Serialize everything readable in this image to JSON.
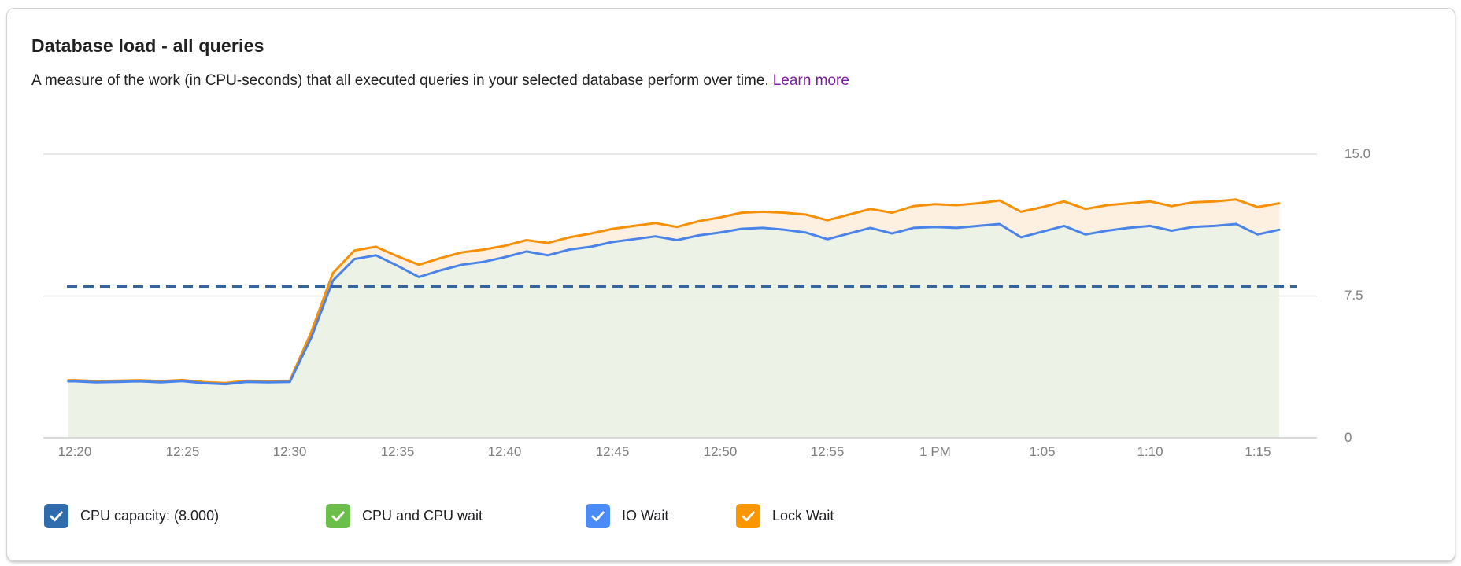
{
  "header": {
    "title": "Database load - all queries",
    "description": "A measure of the work (in CPU-seconds) that all executed queries in your selected database perform over time.",
    "learn_more_label": "Learn more",
    "link_color": "#7b1fa2"
  },
  "legend": {
    "items": [
      {
        "label": "CPU capacity: (8.000)",
        "color": "#2e6cad",
        "checked": true
      },
      {
        "label": "CPU and CPU wait",
        "color": "#6cbe4b",
        "checked": true
      },
      {
        "label": "IO Wait",
        "color": "#4b8bf7",
        "checked": true
      },
      {
        "label": "Lock Wait",
        "color": "#fb9600",
        "checked": true
      }
    ]
  },
  "colors": {
    "gridline": "#e0e0e0",
    "axis_line": "#d9d9d9",
    "axis_label": "#7f7f7f",
    "card_border": "#d2d2d2"
  },
  "chart_data": {
    "type": "area",
    "title": "Database load - all queries",
    "ylabel": "",
    "xlabel": "",
    "ylim": [
      0,
      15
    ],
    "grid": true,
    "legend_position": "bottom",
    "y_ticks": [
      {
        "value": 0,
        "label": "0"
      },
      {
        "value": 7.5,
        "label": "7.5"
      },
      {
        "value": 15,
        "label": "15.0"
      }
    ],
    "x_tick_labels": [
      "12:20",
      "12:25",
      "12:30",
      "12:35",
      "12:40",
      "12:45",
      "12:50",
      "12:55",
      "1 PM",
      "1:05",
      "1:10",
      "1:15"
    ],
    "x_tick_minutes": [
      0,
      5,
      10,
      15,
      20,
      25,
      30,
      35,
      40,
      45,
      50,
      55
    ],
    "capacity_line": {
      "label": "CPU capacity",
      "value": 8.0,
      "color": "#35659f",
      "dash": "13 8"
    },
    "x_minutes": [
      -0.3,
      0,
      1,
      2,
      3,
      4,
      5,
      6,
      7,
      8,
      9,
      10,
      11,
      12,
      13,
      14,
      15,
      16,
      17,
      18,
      19,
      20,
      21,
      22,
      23,
      24,
      25,
      26,
      27,
      28,
      29,
      30,
      31,
      32,
      33,
      34,
      35,
      36,
      37,
      38,
      39,
      40,
      41,
      42,
      43,
      44,
      45,
      46,
      47,
      48,
      49,
      50,
      51,
      52,
      53,
      54,
      55,
      56
    ],
    "series": [
      {
        "name": "IO Wait (stack top: CPU + CPU wait + IO wait)",
        "line_color": "#4a84e9",
        "fill_color": "#e9f0e3",
        "fill_opacity": 0.88,
        "values": [
          2.99,
          2.99,
          2.94,
          2.96,
          2.99,
          2.94,
          3.0,
          2.89,
          2.84,
          2.96,
          2.94,
          2.96,
          5.3,
          8.3,
          9.45,
          9.65,
          9.1,
          8.5,
          8.85,
          9.15,
          9.3,
          9.55,
          9.85,
          9.65,
          9.95,
          10.1,
          10.35,
          10.5,
          10.65,
          10.45,
          10.7,
          10.85,
          11.05,
          11.1,
          11.0,
          10.85,
          10.5,
          10.8,
          11.1,
          10.8,
          11.1,
          11.15,
          11.1,
          11.2,
          11.3,
          10.6,
          10.9,
          11.2,
          10.75,
          10.95,
          11.1,
          11.2,
          10.95,
          11.15,
          11.2,
          11.3,
          10.75,
          11.0
        ]
      },
      {
        "name": "Lock Wait (stack top)",
        "line_color": "#f79009",
        "fill_color": "#fdeedd",
        "fill_opacity": 0.9,
        "values": [
          3.05,
          3.05,
          3.0,
          3.02,
          3.05,
          3.0,
          3.06,
          2.95,
          2.9,
          3.02,
          3.0,
          3.02,
          5.6,
          8.7,
          9.9,
          10.1,
          9.6,
          9.15,
          9.5,
          9.8,
          9.95,
          10.15,
          10.45,
          10.3,
          10.6,
          10.8,
          11.05,
          11.2,
          11.35,
          11.15,
          11.45,
          11.65,
          11.9,
          11.95,
          11.9,
          11.8,
          11.5,
          11.8,
          12.1,
          11.9,
          12.25,
          12.35,
          12.3,
          12.4,
          12.55,
          11.95,
          12.2,
          12.5,
          12.1,
          12.3,
          12.4,
          12.5,
          12.25,
          12.45,
          12.5,
          12.6,
          12.2,
          12.4
        ]
      }
    ]
  }
}
